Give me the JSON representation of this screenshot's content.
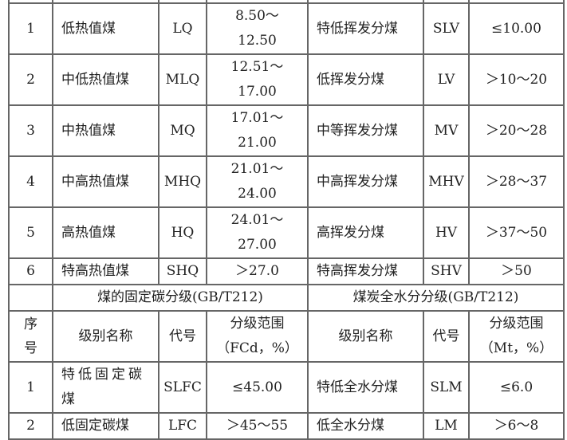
{
  "upper_rows": [
    {
      "no": "1",
      "name1": "低热值煤",
      "code1": "LQ",
      "range1": "8.50～12.50",
      "name2": "特低挥发分煤",
      "code2": "SLV",
      "range2": "≤10.00"
    },
    {
      "no": "2",
      "name1": "中低热值煤",
      "code1": "MLQ",
      "range1": "12.51～17.00",
      "name2": "低挥发分煤",
      "code2": "LV",
      "range2": "＞10～20"
    },
    {
      "no": "3",
      "name1": "中热值煤",
      "code1": "MQ",
      "range1": "17.01～21.00",
      "name2": "中等挥发分煤",
      "code2": "MV",
      "range2": "＞20～28"
    },
    {
      "no": "4",
      "name1": "中高热值煤",
      "code1": "MHQ",
      "range1": "21.01～24.00",
      "name2": "中高挥发分煤",
      "code2": "MHV",
      "range2": "＞28～37"
    },
    {
      "no": "5",
      "name1": "高热值煤",
      "code1": "HQ",
      "range1": "24.01～27.00",
      "name2": "高挥发分煤",
      "code2": "HV",
      "range2": "＞37～50"
    },
    {
      "no": "6",
      "name1": "特高热值煤",
      "code1": "SHQ",
      "range1": "＞27.0",
      "name2": "特高挥发分煤",
      "code2": "SHV",
      "range2": "＞50"
    }
  ],
  "section": {
    "title_left": "煤的固定碳分级(GB/T212)",
    "title_right": "煤炭全水分分级(GB/T212)",
    "headers": {
      "no": "序号",
      "name1": "级别名称",
      "code1": "代号",
      "range1": "分级范围（FCd，%）",
      "name2": "级别名称",
      "code2": "代号",
      "range2": "分级范围（Mt，%）"
    }
  },
  "lower_rows": [
    {
      "no": "1",
      "name1": "特低固定碳煤",
      "code1": "SLFC",
      "range1": "≤45.00",
      "name2": "特低全水分煤",
      "code2": "SLM",
      "range2": "≤6.0"
    },
    {
      "no": "2",
      "name1": "低固定碳煤",
      "code1": "LFC",
      "range1": "＞45～55",
      "name2": "低全水分煤",
      "code2": "LM",
      "range2": "＞6～8"
    }
  ]
}
